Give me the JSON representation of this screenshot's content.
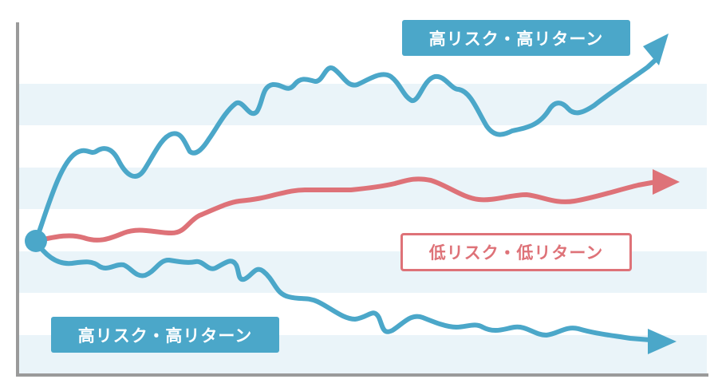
{
  "colors": {
    "high_risk": "#4ba7c9",
    "low_risk": "#de7278",
    "band": "#eaf4f9",
    "axis": "#9a9a9a"
  },
  "labels": {
    "high_risk_top": "高リスク・高リターン",
    "low_risk": "低リスク・低リターン",
    "high_risk_bottom": "高リスク・高リターン"
  }
}
